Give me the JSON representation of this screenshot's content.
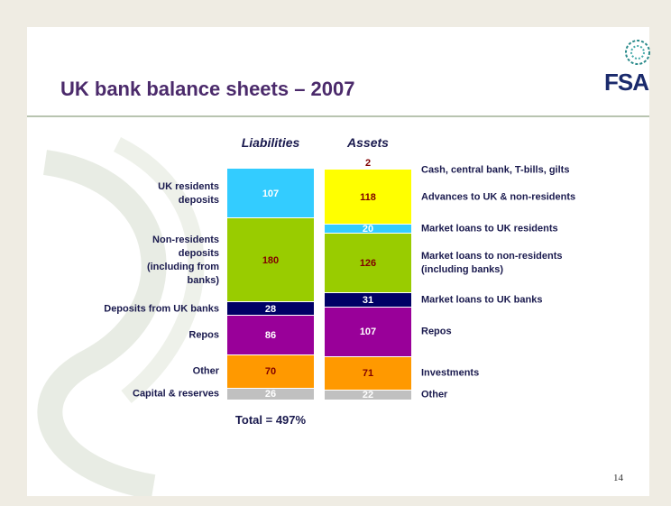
{
  "chart_data": {
    "type": "stacked-column",
    "title": "UK bank balance sheets – 2007",
    "logo": "FSA",
    "page_number": "14",
    "total_label": "Total = 497%",
    "columns": [
      {
        "name": "Liabilities",
        "side": "left",
        "segments": [
          {
            "label": "UK residents\ndeposits",
            "value": 107,
            "color": "#33ccff",
            "label_color": "#ffffff"
          },
          {
            "label": "Non-residents\ndeposits\n(including from\nbanks)",
            "value": 180,
            "color": "#99cc00",
            "label_color": "#800000"
          },
          {
            "label": "Deposits from UK banks",
            "value": 28,
            "color": "#000066",
            "label_color": "#ffffff"
          },
          {
            "label": "Repos",
            "value": 86,
            "color": "#990099",
            "label_color": "#ffffff"
          },
          {
            "label": "Other",
            "value": 70,
            "color": "#ff9900",
            "label_color": "#800000"
          },
          {
            "label": "Capital & reserves",
            "value": 26,
            "color": "#c0c0c0",
            "label_color": "#ffffff"
          }
        ]
      },
      {
        "name": "Assets",
        "side": "right",
        "segments": [
          {
            "label": "Cash, central bank, T-bills, gilts",
            "value": 2,
            "color": "#990099",
            "label_color": "#800000"
          },
          {
            "label": "Advances to UK & non-residents",
            "value": 118,
            "color": "#ffff00",
            "label_color": "#800000"
          },
          {
            "label": "Market loans to UK residents",
            "value": 20,
            "color": "#33ccff",
            "label_color": "#ffffff"
          },
          {
            "label": "Market loans to non-residents\n(including banks)",
            "value": 126,
            "color": "#99cc00",
            "label_color": "#800000"
          },
          {
            "label": "Market loans to UK banks",
            "value": 31,
            "color": "#000066",
            "label_color": "#ffffff"
          },
          {
            "label": "Repos",
            "value": 107,
            "color": "#990099",
            "label_color": "#ffffff"
          },
          {
            "label": "Investments",
            "value": 71,
            "color": "#ff9900",
            "label_color": "#800000"
          },
          {
            "label": "Other",
            "value": 22,
            "color": "#c0c0c0",
            "label_color": "#ffffff"
          }
        ]
      }
    ]
  }
}
